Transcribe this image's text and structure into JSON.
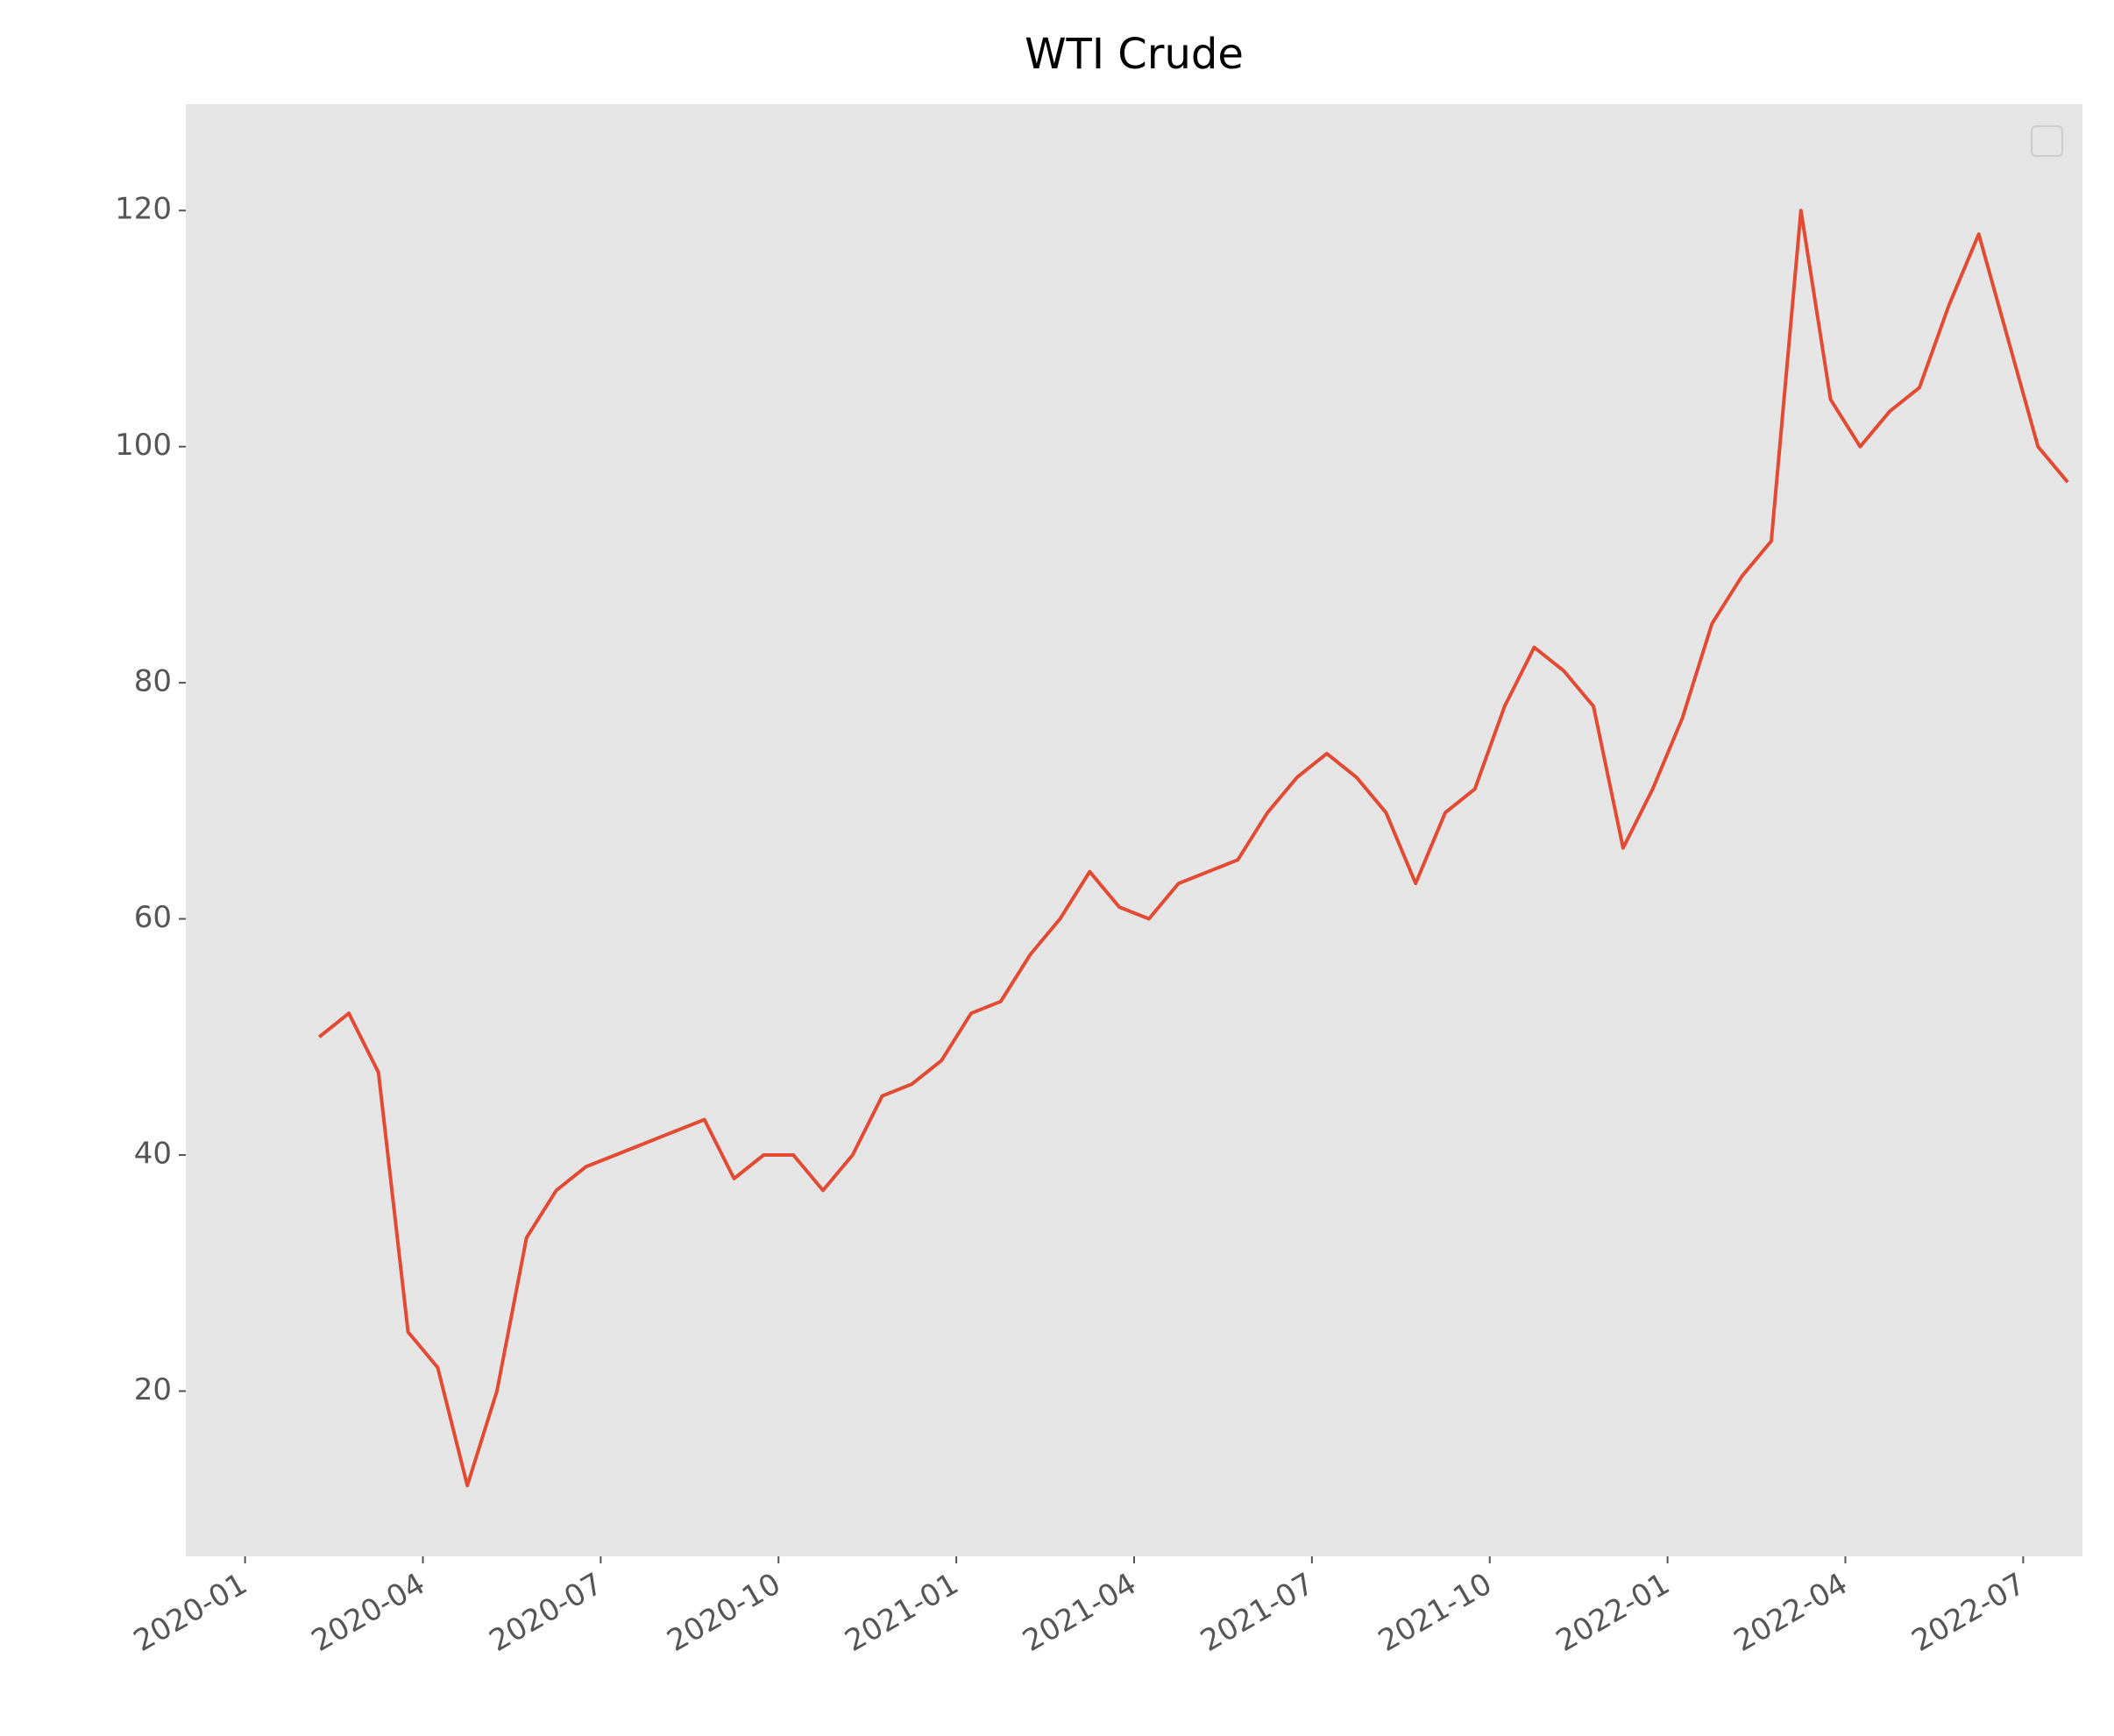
{
  "chart_data": {
    "type": "line",
    "title": "WTI Crude",
    "x": [
      "2020-02",
      "2020-02",
      "2020-03",
      "2020-03",
      "2020-04",
      "2020-04",
      "2020-05",
      "2020-05",
      "2020-06",
      "2020-06",
      "2020-07",
      "2020-07",
      "2020-08",
      "2020-08",
      "2020-09",
      "2020-09",
      "2020-10",
      "2020-10",
      "2020-11",
      "2020-11",
      "2020-12",
      "2020-12",
      "2021-01",
      "2021-01",
      "2021-02",
      "2021-02",
      "2021-03",
      "2021-03",
      "2021-04",
      "2021-04",
      "2021-05",
      "2021-05",
      "2021-06",
      "2021-06",
      "2021-07",
      "2021-07",
      "2021-08",
      "2021-08",
      "2021-09",
      "2021-09",
      "2021-10",
      "2021-10",
      "2021-11",
      "2021-11",
      "2021-12",
      "2021-12",
      "2022-01",
      "2022-01",
      "2022-02",
      "2022-02",
      "2022-03",
      "2022-03",
      "2022-04",
      "2022-04",
      "2022-05",
      "2022-05",
      "2022-06",
      "2022-06",
      "2022-07",
      "2022-07"
    ],
    "values": [
      50,
      52,
      47,
      25,
      22,
      12,
      20,
      33,
      37,
      39,
      40,
      41,
      42,
      43,
      38,
      40,
      40,
      37,
      40,
      45,
      46,
      48,
      52,
      53,
      57,
      60,
      64,
      61,
      60,
      63,
      64,
      65,
      69,
      72,
      74,
      72,
      69,
      63,
      69,
      71,
      78,
      83,
      81,
      78,
      66,
      71,
      77,
      85,
      89,
      92,
      120,
      104,
      100,
      103,
      105,
      112,
      118,
      109,
      100,
      97
    ],
    "color": "#e24a33",
    "xlim": [
      "2019-12",
      "2022-08"
    ],
    "xticks": [
      "2020-01",
      "2020-04",
      "2020-07",
      "2020-10",
      "2021-01",
      "2021-04",
      "2021-07",
      "2021-10",
      "2022-01",
      "2022-04",
      "2022-07"
    ],
    "ylim": [
      6,
      129
    ],
    "yticks": [
      20,
      40,
      60,
      80,
      100,
      120
    ],
    "grid": false
  }
}
